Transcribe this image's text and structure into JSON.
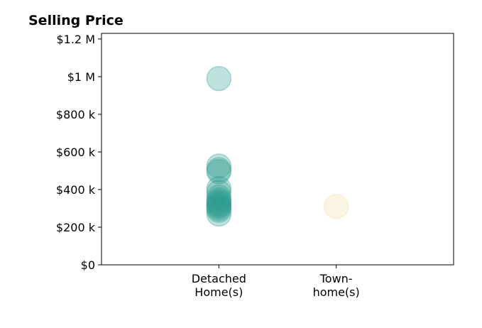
{
  "chart_data": {
    "type": "scatter",
    "title": "Selling Price",
    "xlabel": "",
    "ylabel": "",
    "categories": [
      [
        "Detached",
        "Home(s)"
      ],
      [
        "Town-",
        "home(s)"
      ]
    ],
    "y_tick_values": [
      0,
      200000,
      400000,
      600000,
      800000,
      1000000,
      1200000
    ],
    "y_tick_labels": [
      "$0",
      "$200 k",
      "$400 k",
      "$600 k",
      "$800 k",
      "$1 M",
      "$1.2 M"
    ],
    "ylim": [
      0,
      1230000
    ],
    "xlim": [
      -1,
      2
    ],
    "grid": false,
    "legend": "none",
    "series": [
      {
        "category": "Detached Home(s)",
        "color": "#2a9d8f",
        "values": [
          990000,
          525000,
          505000,
          495000,
          405000,
          385000,
          360000,
          345000,
          335000,
          325000,
          318000,
          310000,
          300000,
          290000,
          270000
        ]
      },
      {
        "category": "Town-home(s)",
        "color": "#f0d9a0",
        "values": [
          310000
        ]
      }
    ]
  }
}
